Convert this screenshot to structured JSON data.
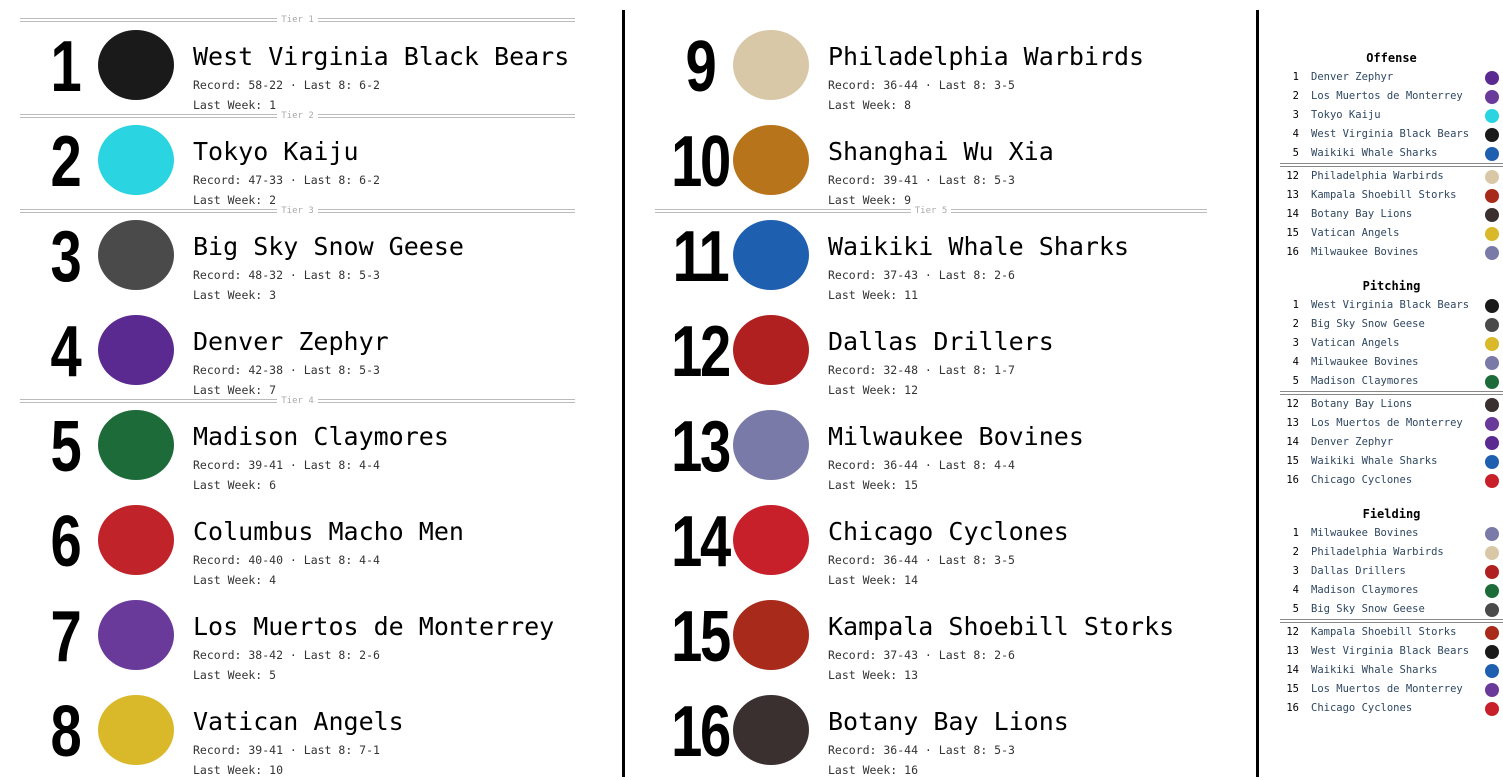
{
  "tiers": {
    "t1": "Tier 1",
    "t2": "Tier 2",
    "t3": "Tier 3",
    "t4": "Tier 4",
    "t5": "Tier 5"
  },
  "rankings": [
    {
      "rank": "1",
      "team": "West Virginia Black Bears",
      "record": "Record: 58-22 · Last 8: 6-2",
      "last_week": "Last Week: 1",
      "color": "#1a1a1a"
    },
    {
      "rank": "2",
      "team": "Tokyo Kaiju",
      "record": "Record: 47-33 · Last 8: 6-2",
      "last_week": "Last Week: 2",
      "color": "#2ad4e0"
    },
    {
      "rank": "3",
      "team": "Big Sky Snow Geese",
      "record": "Record: 48-32 · Last 8: 5-3",
      "last_week": "Last Week: 3",
      "color": "#4a4a4a"
    },
    {
      "rank": "4",
      "team": "Denver Zephyr",
      "record": "Record: 42-38 · Last 8: 5-3",
      "last_week": "Last Week: 7",
      "color": "#5a2a90"
    },
    {
      "rank": "5",
      "team": "Madison Claymores",
      "record": "Record: 39-41 · Last 8: 4-4",
      "last_week": "Last Week: 6",
      "color": "#1e6b3a"
    },
    {
      "rank": "6",
      "team": "Columbus Macho Men",
      "record": "Record: 40-40 · Last 8: 4-4",
      "last_week": "Last Week: 4",
      "color": "#c0232a"
    },
    {
      "rank": "7",
      "team": "Los Muertos de Monterrey",
      "record": "Record: 38-42 · Last 8: 2-6",
      "last_week": "Last Week: 5",
      "color": "#6a3a9a"
    },
    {
      "rank": "8",
      "team": "Vatican Angels",
      "record": "Record: 39-41 · Last 8: 7-1",
      "last_week": "Last Week: 10",
      "color": "#d9b92a"
    },
    {
      "rank": "9",
      "team": "Philadelphia Warbirds",
      "record": "Record: 36-44 · Last 8: 3-5",
      "last_week": "Last Week: 8",
      "color": "#d8c8a8"
    },
    {
      "rank": "10",
      "team": "Shanghai Wu Xia",
      "record": "Record: 39-41 · Last 8: 5-3",
      "last_week": "Last Week: 9",
      "color": "#b8741a"
    },
    {
      "rank": "11",
      "team": "Waikiki Whale Sharks",
      "record": "Record: 37-43 · Last 8: 2-6",
      "last_week": "Last Week: 11",
      "color": "#1f5fb0"
    },
    {
      "rank": "12",
      "team": "Dallas Drillers",
      "record": "Record: 32-48 · Last 8: 1-7",
      "last_week": "Last Week: 12",
      "color": "#b02020"
    },
    {
      "rank": "13",
      "team": "Milwaukee Bovines",
      "record": "Record: 36-44 · Last 8: 4-4",
      "last_week": "Last Week: 15",
      "color": "#7a7aa8"
    },
    {
      "rank": "14",
      "team": "Chicago Cyclones",
      "record": "Record: 36-44 · Last 8: 3-5",
      "last_week": "Last Week: 14",
      "color": "#c8202a"
    },
    {
      "rank": "15",
      "team": "Kampala Shoebill Storks",
      "record": "Record: 37-43 · Last 8: 2-6",
      "last_week": "Last Week: 13",
      "color": "#a82a1a"
    },
    {
      "rank": "16",
      "team": "Botany Bay Lions",
      "record": "Record: 36-44 · Last 8: 5-3",
      "last_week": "Last Week: 16",
      "color": "#3a3030"
    }
  ],
  "sidebar": [
    {
      "title": "Offense",
      "top": [
        [
          "1",
          "Denver Zephyr"
        ],
        [
          "2",
          "Los Muertos de Monterrey"
        ],
        [
          "3",
          "Tokyo Kaiju"
        ],
        [
          "4",
          "West Virginia Black Bears"
        ],
        [
          "5",
          "Waikiki Whale Sharks"
        ]
      ],
      "bottom": [
        [
          "12",
          "Philadelphia Warbirds"
        ],
        [
          "13",
          "Kampala Shoebill Storks"
        ],
        [
          "14",
          "Botany Bay Lions"
        ],
        [
          "15",
          "Vatican Angels"
        ],
        [
          "16",
          "Milwaukee Bovines"
        ]
      ]
    },
    {
      "title": "Pitching",
      "top": [
        [
          "1",
          "West Virginia Black Bears"
        ],
        [
          "2",
          "Big Sky Snow Geese"
        ],
        [
          "3",
          "Vatican Angels"
        ],
        [
          "4",
          "Milwaukee Bovines"
        ],
        [
          "5",
          "Madison Claymores"
        ]
      ],
      "bottom": [
        [
          "12",
          "Botany Bay Lions"
        ],
        [
          "13",
          "Los Muertos de Monterrey"
        ],
        [
          "14",
          "Denver Zephyr"
        ],
        [
          "15",
          "Waikiki Whale Sharks"
        ],
        [
          "16",
          "Chicago Cyclones"
        ]
      ]
    },
    {
      "title": "Fielding",
      "top": [
        [
          "1",
          "Milwaukee Bovines"
        ],
        [
          "2",
          "Philadelphia Warbirds"
        ],
        [
          "3",
          "Dallas Drillers"
        ],
        [
          "4",
          "Madison Claymores"
        ],
        [
          "5",
          "Big Sky Snow Geese"
        ]
      ],
      "bottom": [
        [
          "12",
          "Kampala Shoebill Storks"
        ],
        [
          "13",
          "West Virginia Black Bears"
        ],
        [
          "14",
          "Waikiki Whale Sharks"
        ],
        [
          "15",
          "Los Muertos de Monterrey"
        ],
        [
          "16",
          "Chicago Cyclones"
        ]
      ]
    }
  ]
}
